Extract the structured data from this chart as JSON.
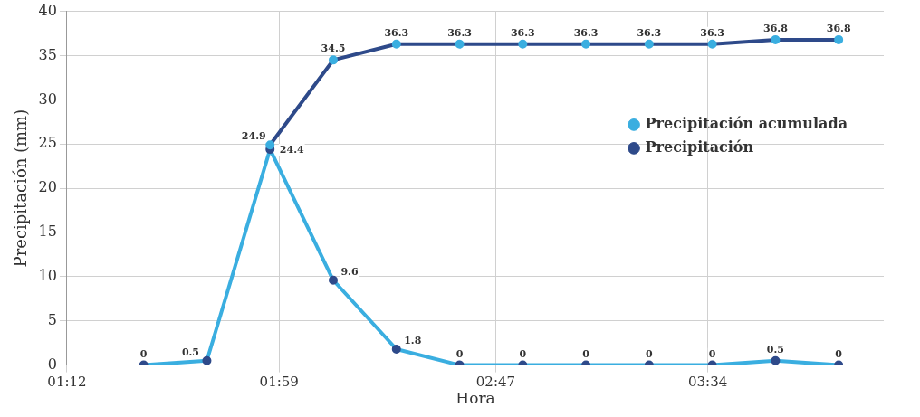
{
  "chart_data": {
    "type": "line",
    "xlabel": "Hora",
    "ylabel": "Precipitación (mm)",
    "x": [
      89,
      103,
      117,
      131,
      145,
      159,
      173,
      187,
      201,
      215,
      229,
      243
    ],
    "xlim": [
      72,
      253
    ],
    "xticks": [
      {
        "value": 72,
        "label": "01:12"
      },
      {
        "value": 119,
        "label": "01:59"
      },
      {
        "value": 167,
        "label": "02:47"
      },
      {
        "value": 214,
        "label": "03:34"
      }
    ],
    "ylim": [
      0,
      40
    ],
    "yticks": [
      0,
      5,
      10,
      15,
      20,
      25,
      30,
      35,
      40
    ],
    "grid": true,
    "legend": "right",
    "marker": "circle",
    "line_style": "solid",
    "series": [
      {
        "name": "Precipitación acumulada",
        "color": "#2e4a8a",
        "values": [
          null,
          null,
          24.9,
          34.5,
          36.3,
          36.3,
          36.3,
          36.3,
          36.3,
          36.3,
          36.8,
          36.8
        ],
        "value_labels": [
          null,
          null,
          "24.9",
          "34.5",
          "36.3",
          "36.3",
          "36.3",
          "36.3",
          "36.3",
          "36.3",
          "36.8",
          "36.8"
        ]
      },
      {
        "name": "Precipitación",
        "color": "#3aaee0",
        "values": [
          0,
          0.5,
          24.4,
          9.6,
          1.8,
          0,
          0,
          0,
          0,
          0,
          0.5,
          0
        ],
        "value_labels": [
          "0",
          "0.5",
          "24.4",
          "9.6",
          "1.8",
          "0",
          "0",
          "0",
          "0",
          "0",
          "0.5",
          "0"
        ]
      }
    ]
  }
}
